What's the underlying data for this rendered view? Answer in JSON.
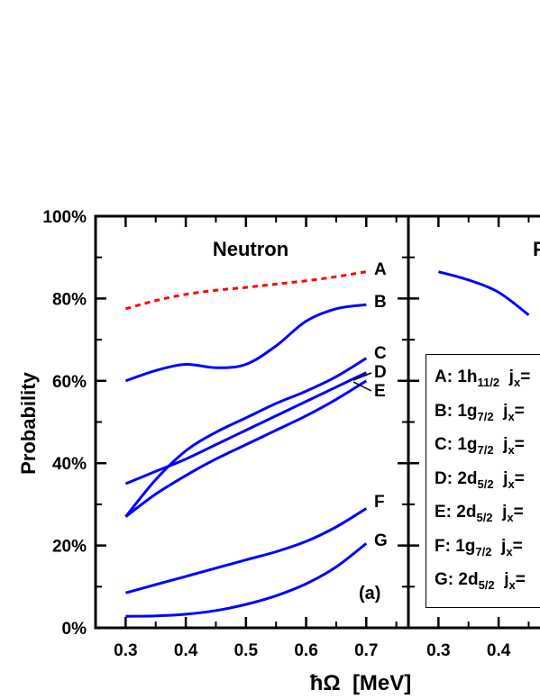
{
  "chart_data": [
    {
      "type": "line",
      "panel_label": "(a)",
      "title": "Neutron",
      "xlabel": "ħΩ  [MeV]",
      "ylabel": "Probability",
      "xlim": [
        0.25,
        0.77
      ],
      "ylim": [
        0,
        100
      ],
      "x_ticks": [
        "0.3",
        "0.4",
        "0.5",
        "0.6",
        "0.7"
      ],
      "y_ticks": [
        "0%",
        "20%",
        "40%",
        "60%",
        "80%",
        "100%"
      ],
      "grid": false,
      "series": [
        {
          "name": "A",
          "style": "dashed",
          "color": "#ff0000",
          "x": [
            0.3,
            0.35,
            0.4,
            0.45,
            0.5,
            0.55,
            0.6,
            0.65,
            0.7
          ],
          "y": [
            77.5,
            79.5,
            81.0,
            82.0,
            82.7,
            83.5,
            84.3,
            85.3,
            86.5
          ]
        },
        {
          "name": "B",
          "style": "solid",
          "color": "#0000ff",
          "x": [
            0.3,
            0.35,
            0.4,
            0.45,
            0.5,
            0.55,
            0.6,
            0.65,
            0.7
          ],
          "y": [
            60.0,
            62.5,
            64.0,
            63.2,
            64.0,
            68.5,
            74.5,
            77.5,
            78.5
          ]
        },
        {
          "name": "C",
          "style": "solid",
          "color": "#0000ff",
          "x": [
            0.3,
            0.35,
            0.4,
            0.45,
            0.5,
            0.55,
            0.6,
            0.65,
            0.7
          ],
          "y": [
            35.0,
            38.0,
            41.0,
            44.5,
            48.0,
            51.5,
            55.0,
            58.5,
            62.0
          ]
        },
        {
          "name": "D",
          "style": "solid",
          "color": "#0000ff",
          "x": [
            0.3,
            0.35,
            0.4,
            0.45,
            0.5,
            0.55,
            0.6,
            0.65,
            0.7
          ],
          "y": [
            27.0,
            36.0,
            43.0,
            47.5,
            51.0,
            54.5,
            57.5,
            61.0,
            65.5
          ]
        },
        {
          "name": "E",
          "style": "solid",
          "color": "#0000ff",
          "x": [
            0.3,
            0.35,
            0.4,
            0.45,
            0.5,
            0.55,
            0.6,
            0.65,
            0.7
          ],
          "y": [
            27.0,
            32.5,
            37.0,
            41.0,
            44.5,
            48.0,
            51.5,
            55.5,
            60.0
          ]
        },
        {
          "name": "F",
          "style": "solid",
          "color": "#0000ff",
          "x": [
            0.3,
            0.35,
            0.4,
            0.45,
            0.5,
            0.55,
            0.6,
            0.65,
            0.7
          ],
          "y": [
            8.5,
            10.5,
            12.5,
            14.5,
            16.5,
            18.5,
            21.0,
            24.5,
            29.0
          ]
        },
        {
          "name": "G",
          "style": "solid",
          "color": "#0000ff",
          "x": [
            0.3,
            0.35,
            0.4,
            0.45,
            0.5,
            0.55,
            0.6,
            0.65,
            0.7
          ],
          "y": [
            2.8,
            2.9,
            3.3,
            4.2,
            5.7,
            7.8,
            10.7,
            14.8,
            20.5
          ]
        }
      ]
    },
    {
      "type": "line",
      "title": "P",
      "xlim": [
        0.25,
        0.77
      ],
      "x_ticks": [
        "0.3",
        "0.4"
      ],
      "ylim": [
        0,
        100
      ],
      "series": [
        {
          "color": "#0000ff",
          "x": [
            0.3,
            0.35,
            0.4,
            0.45
          ],
          "y": [
            86.5,
            84.5,
            81.5,
            76.0
          ]
        }
      ],
      "legend": [
        {
          "key": "A",
          "state": "1h",
          "sub": "11/2",
          "tail": "j",
          "tail_sub": "x",
          "after": "="
        },
        {
          "key": "B",
          "state": "1g",
          "sub": "7/2",
          "tail": "j",
          "tail_sub": "x",
          "after": "="
        },
        {
          "key": "C",
          "state": "1g",
          "sub": "7/2",
          "tail": "j",
          "tail_sub": "x",
          "after": "="
        },
        {
          "key": "D",
          "state": "2d",
          "sub": "5/2",
          "tail": "j",
          "tail_sub": "x",
          "after": "="
        },
        {
          "key": "E",
          "state": "2d",
          "sub": "5/2",
          "tail": "j",
          "tail_sub": "x",
          "after": "="
        },
        {
          "key": "F",
          "state": "1g",
          "sub": "7/2",
          "tail": "j",
          "tail_sub": "x",
          "after": "="
        },
        {
          "key": "G",
          "state": "2d",
          "sub": "5/2",
          "tail": "j",
          "tail_sub": "x",
          "after": "="
        }
      ]
    }
  ]
}
